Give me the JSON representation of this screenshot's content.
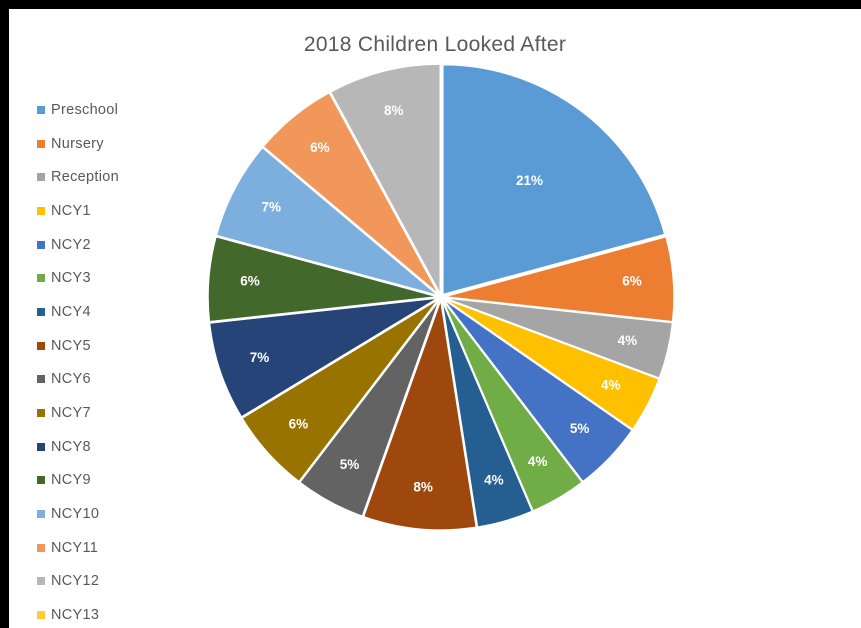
{
  "chart_data": {
    "type": "pie",
    "title": "2018 Children Looked After",
    "legend_position": "left",
    "categories": [
      "Preschool",
      "Nursery",
      "Reception",
      "NCY1",
      "NCY2",
      "NCY3",
      "NCY4",
      "NCY5",
      "NCY6",
      "NCY7",
      "NCY8",
      "NCY9",
      "NCY10",
      "NCY11",
      "NCY12",
      "NCY13"
    ],
    "values": [
      21,
      6,
      4,
      4,
      5,
      4,
      4,
      8,
      5,
      6,
      7,
      6,
      7,
      6,
      8,
      0
    ],
    "labels": [
      "21%",
      "6%",
      "4%",
      "4%",
      "5%",
      "4%",
      "4%",
      "8%",
      "5%",
      "6%",
      "7%",
      "6%",
      "7%",
      "6%",
      "8%",
      ""
    ],
    "colors": [
      "#5B9BD5",
      "#ED7D31",
      "#A5A5A5",
      "#FFC000",
      "#4472C4",
      "#70AD47",
      "#255E91",
      "#9E480E",
      "#636363",
      "#997300",
      "#264478",
      "#43682B",
      "#7CAFDD",
      "#F1975A",
      "#B7B7B7",
      "#FFCD33"
    ]
  }
}
